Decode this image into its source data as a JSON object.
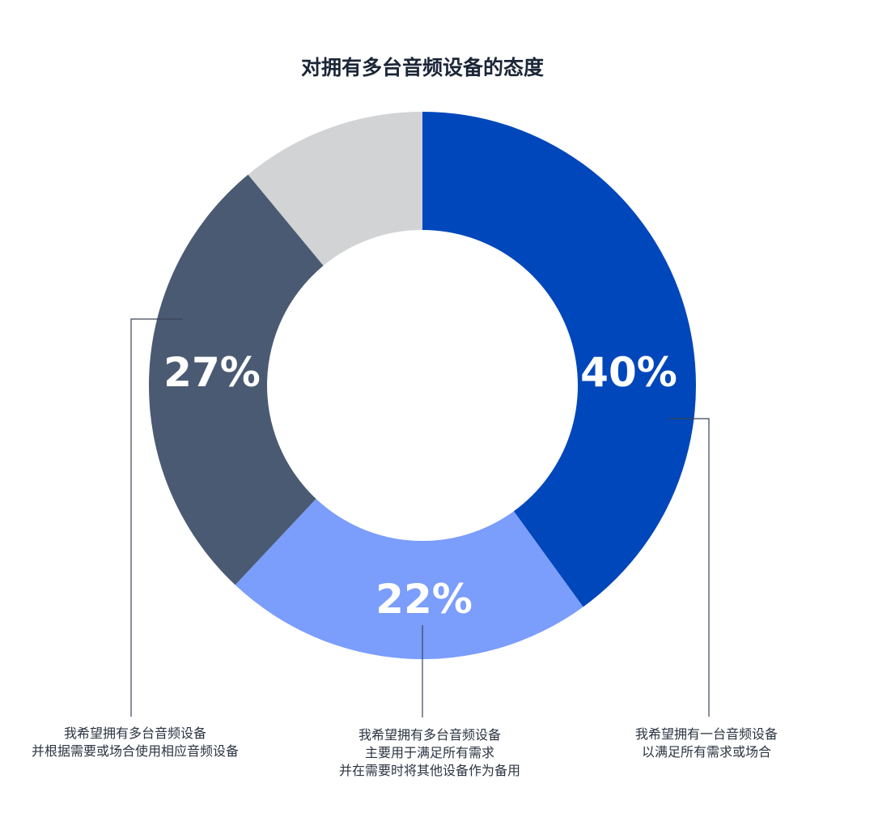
{
  "chart_data": {
    "type": "pie",
    "title": "对拥有多台音频设备的态度",
    "slices": [
      {
        "value": 40,
        "label": "40%",
        "color": "#0047bb",
        "annotation": [
          "我希望拥有一台音频设备",
          "以满足所有需求或场合"
        ]
      },
      {
        "value": 22,
        "label": "22%",
        "color": "#7b9dfc",
        "annotation": [
          "我希望拥有多台音频设备",
          "主要用于满足所有需求",
          "并在需要时将其他设备作为备用"
        ]
      },
      {
        "value": 27,
        "label": "27%",
        "color": "#4a5a73",
        "annotation": [
          "我希望拥有多台音频设备",
          "并根据需要或场合使用相应音频设备"
        ]
      },
      {
        "value": 11,
        "label": "",
        "color": "#d2d3d5",
        "annotation": []
      }
    ],
    "donut": true,
    "start": "top",
    "direction": "clockwise"
  }
}
